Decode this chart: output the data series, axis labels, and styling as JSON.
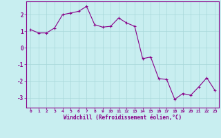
{
  "x": [
    0,
    1,
    2,
    3,
    4,
    5,
    6,
    7,
    8,
    9,
    10,
    11,
    12,
    13,
    14,
    15,
    16,
    17,
    18,
    19,
    20,
    21,
    22,
    23
  ],
  "y": [
    1.1,
    0.9,
    0.9,
    1.2,
    2.0,
    2.1,
    2.2,
    2.5,
    1.4,
    1.25,
    1.3,
    1.8,
    1.5,
    1.3,
    -0.65,
    -0.55,
    -1.85,
    -1.9,
    -3.1,
    -2.75,
    -2.85,
    -2.35,
    -1.8,
    -2.55
  ],
  "line_color": "#880088",
  "marker_color": "#880088",
  "bg_color": "#c8eef0",
  "grid_color": "#a8d8da",
  "axis_color": "#880088",
  "tick_color": "#880088",
  "xlabel": "Windchill (Refroidissement éolien,°C)",
  "ylim": [
    -3.6,
    2.8
  ],
  "xlim": [
    -0.5,
    23.5
  ],
  "yticks": [
    -3,
    -2,
    -1,
    0,
    1,
    2
  ],
  "xtick_labels": [
    "0",
    "1",
    "2",
    "3",
    "4",
    "5",
    "6",
    "7",
    "8",
    "9",
    "10",
    "11",
    "12",
    "13",
    "14",
    "15",
    "16",
    "17",
    "18",
    "19",
    "20",
    "21",
    "22",
    "23"
  ]
}
